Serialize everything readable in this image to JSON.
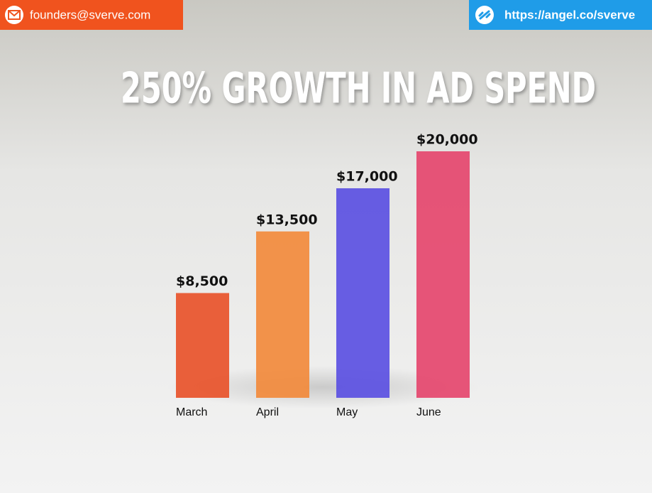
{
  "header": {
    "email": "founders@sverve.com",
    "link": "https://angel.co/sverve"
  },
  "chart_data": {
    "type": "bar",
    "title": "250% GROWTH IN AD SPEND",
    "categories": [
      "March",
      "April",
      "May",
      "June"
    ],
    "values": [
      8500,
      13500,
      17000,
      20000
    ],
    "value_labels": [
      "$8,500",
      "$13,500",
      "$17,000",
      "$20,000"
    ],
    "colors": [
      "#e8532a",
      "#f28a3c",
      "#5b50e2",
      "#e5466e"
    ]
  }
}
